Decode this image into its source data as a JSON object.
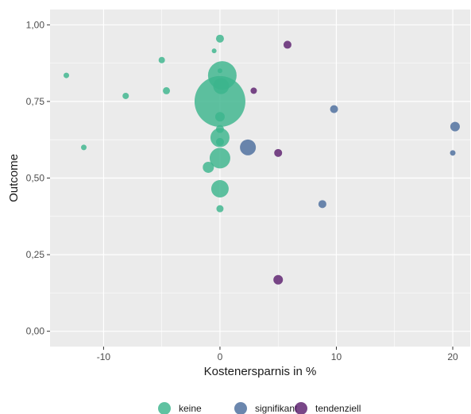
{
  "chart_data": {
    "type": "scatter",
    "title": "",
    "xlabel": "Kostenersparnis in %",
    "ylabel": "Outcome",
    "xlim": [
      -14.6,
      21.5
    ],
    "ylim": [
      -0.05,
      1.05
    ],
    "x_ticks": [
      -10,
      0,
      10,
      20
    ],
    "y_ticks": [
      0.0,
      0.25,
      0.5,
      0.75,
      1.0
    ],
    "x_tick_labels": [
      "-10",
      "0",
      "10",
      "20"
    ],
    "y_tick_labels": [
      "0,00",
      "0,25",
      "0,50",
      "0,75",
      "1,00"
    ],
    "grid": true,
    "legend_position": "bottom",
    "series": [
      {
        "name": "keine",
        "color": "#3CB58C",
        "points": [
          {
            "x": 0.0,
            "y": 0.75,
            "size": 32
          },
          {
            "x": 0.2,
            "y": 0.835,
            "size": 18
          },
          {
            "x": 0.1,
            "y": 0.8,
            "size": 10
          },
          {
            "x": 0.0,
            "y": 0.7,
            "size": 6
          },
          {
            "x": 0.0,
            "y": 0.66,
            "size": 5
          },
          {
            "x": 0.0,
            "y": 0.632,
            "size": 12
          },
          {
            "x": 0.0,
            "y": 0.618,
            "size": 5
          },
          {
            "x": 0.0,
            "y": 0.565,
            "size": 13
          },
          {
            "x": -1.0,
            "y": 0.535,
            "size": 7
          },
          {
            "x": 0.0,
            "y": 0.465,
            "size": 11
          },
          {
            "x": 0.0,
            "y": 0.4,
            "size": 4.5
          },
          {
            "x": 0.0,
            "y": 0.955,
            "size": 5
          },
          {
            "x": -0.5,
            "y": 0.915,
            "size": 3
          },
          {
            "x": 0.0,
            "y": 0.85,
            "size": 3
          },
          {
            "x": -5.0,
            "y": 0.885,
            "size": 4
          },
          {
            "x": -13.2,
            "y": 0.835,
            "size": 3.5
          },
          {
            "x": -8.1,
            "y": 0.768,
            "size": 4
          },
          {
            "x": -4.6,
            "y": 0.785,
            "size": 4.5
          },
          {
            "x": -11.7,
            "y": 0.6,
            "size": 3.5
          }
        ]
      },
      {
        "name": "signifikant",
        "color": "#4A6D9C",
        "points": [
          {
            "x": 2.4,
            "y": 0.6,
            "size": 10
          },
          {
            "x": 9.8,
            "y": 0.725,
            "size": 5
          },
          {
            "x": 8.8,
            "y": 0.415,
            "size": 5
          },
          {
            "x": 20.2,
            "y": 0.668,
            "size": 6
          },
          {
            "x": 20.0,
            "y": 0.582,
            "size": 3.5
          }
        ]
      },
      {
        "name": "tendenziell",
        "color": "#5B1F6E",
        "points": [
          {
            "x": 5.8,
            "y": 0.935,
            "size": 5
          },
          {
            "x": 2.9,
            "y": 0.785,
            "size": 4
          },
          {
            "x": 5.0,
            "y": 0.582,
            "size": 5
          },
          {
            "x": 5.0,
            "y": 0.168,
            "size": 6
          }
        ]
      }
    ]
  }
}
